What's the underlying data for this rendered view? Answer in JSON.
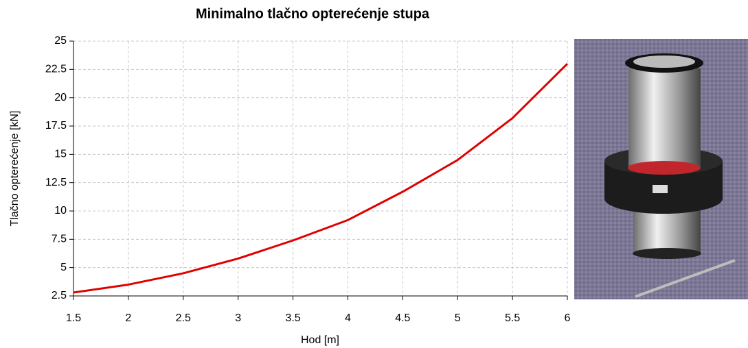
{
  "chart_data": {
    "type": "line",
    "title": "Minimalno tlačno opterećenje stupa",
    "x_label": "Hod [m]",
    "y_label": "Tlačno opterećenje [kN]",
    "x": [
      1.5,
      2,
      2.5,
      3,
      3.5,
      4,
      4.5,
      5,
      5.5,
      6
    ],
    "values": [
      2.8,
      3.5,
      4.5,
      5.8,
      7.4,
      9.2,
      11.7,
      14.5,
      18.2,
      23.0
    ],
    "color": "#e00000",
    "xlim": [
      1.5,
      6
    ],
    "xticks": [
      1.5,
      2,
      2.5,
      3,
      3.5,
      4,
      4.5,
      5,
      5.5,
      6
    ],
    "ylim": [
      2.5,
      25
    ],
    "yticks": [
      2.5,
      5,
      7.5,
      10,
      12.5,
      15,
      17.5,
      20,
      22.5,
      25
    ],
    "grid": true
  }
}
